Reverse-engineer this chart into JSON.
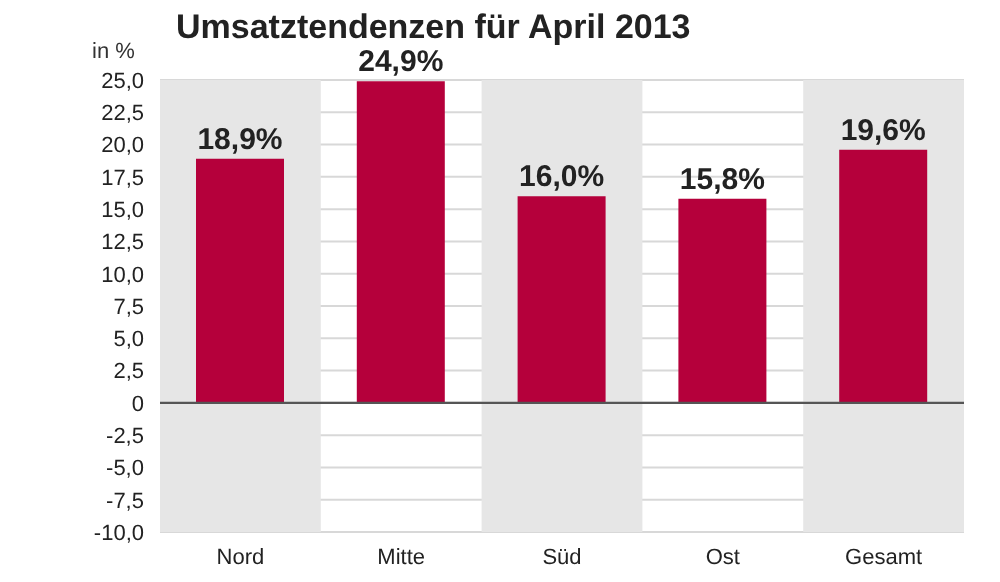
{
  "chart_data": {
    "type": "bar",
    "title": "Umsatztendenzen für April 2013",
    "ylabel": "in %",
    "categories": [
      "Nord",
      "Mitte",
      "Süd",
      "Ost",
      "Gesamt"
    ],
    "values": [
      18.9,
      24.9,
      16.0,
      15.8,
      19.6
    ],
    "color": "#b5003b",
    "value_labels": [
      "18,9%",
      "24,9%",
      "16,0%",
      "15,8%",
      "19,6%"
    ],
    "ylim": [
      -10,
      25
    ],
    "yticks": [
      {
        "value": -10,
        "label": "-10,0"
      },
      {
        "value": -7.5,
        "label": "-7,5"
      },
      {
        "value": -5,
        "label": "-5,0"
      },
      {
        "value": -2.5,
        "label": "-2,5"
      },
      {
        "value": 0,
        "label": "0"
      },
      {
        "value": 2.5,
        "label": "2,5"
      },
      {
        "value": 5,
        "label": "5,0"
      },
      {
        "value": 7.5,
        "label": "7,5"
      },
      {
        "value": 10,
        "label": "10,0"
      },
      {
        "value": 12.5,
        "label": "12,5"
      },
      {
        "value": 15,
        "label": "15,0"
      },
      {
        "value": 17.5,
        "label": "17,5"
      },
      {
        "value": 20,
        "label": "20,0"
      },
      {
        "value": 22.5,
        "label": "22,5"
      },
      {
        "value": 25,
        "label": "25,0"
      }
    ],
    "bands": [
      {
        "axis": "x",
        "from": "Nord",
        "to": "Nord",
        "color": "#e6e6e6"
      },
      {
        "axis": "x",
        "from": "Süd",
        "to": "Süd",
        "color": "#e6e6e6"
      },
      {
        "axis": "x",
        "from": "Gesamt",
        "to": "Gesamt",
        "color": "#e6e6e6"
      }
    ],
    "ref_lines": [
      {
        "axis": "y",
        "value": 0,
        "color": "#555555"
      }
    ],
    "grid": "y"
  }
}
